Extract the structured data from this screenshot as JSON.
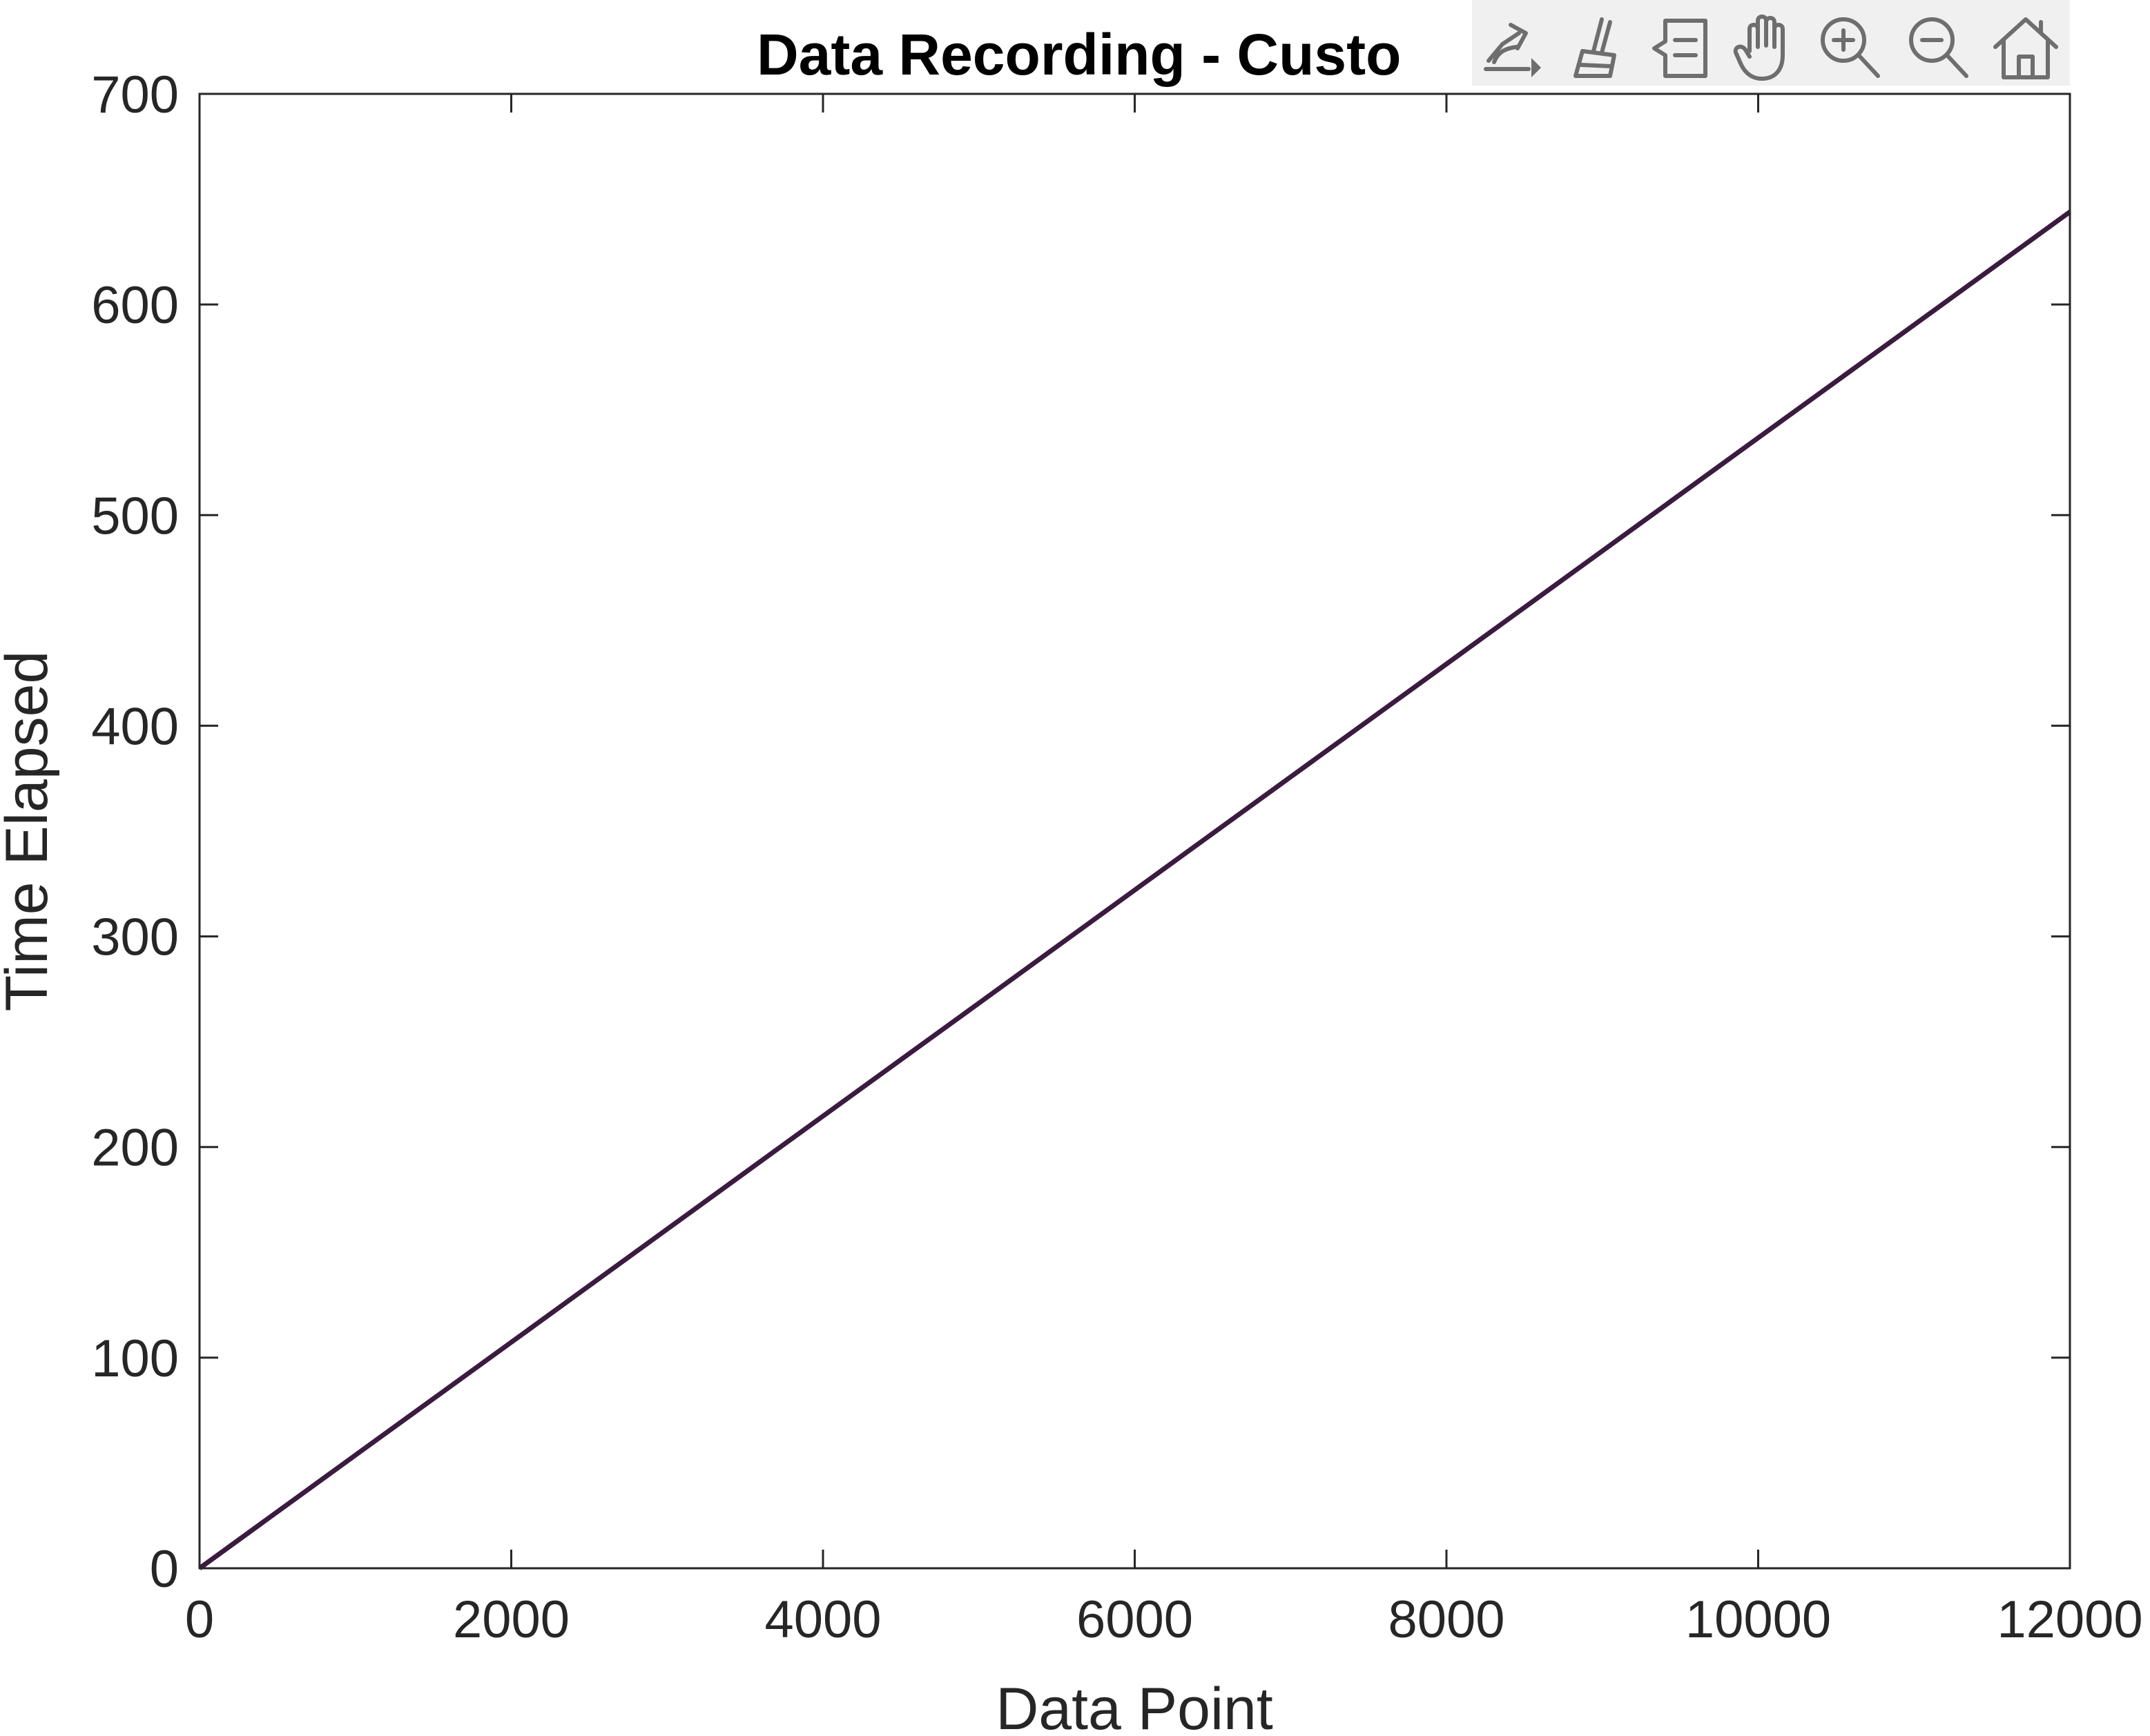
{
  "chart_data": {
    "type": "line",
    "title": "Data Recording - Custo",
    "xlabel": "Data Point",
    "ylabel": "Time Elapsed",
    "xlim": [
      0,
      12000
    ],
    "ylim": [
      0,
      700
    ],
    "xticks": [
      0,
      2000,
      4000,
      6000,
      8000,
      10000,
      12000
    ],
    "yticks": [
      0,
      100,
      200,
      300,
      400,
      500,
      600,
      700
    ],
    "grid": false,
    "series": [
      {
        "color": "#3b1b40",
        "x": [
          0,
          1000,
          2000,
          3000,
          4000,
          5000,
          6000,
          7000,
          8000,
          9000,
          10000,
          11000,
          12000
        ],
        "y": [
          0,
          53.7,
          107.3,
          161,
          214.7,
          268.3,
          322,
          375.7,
          429.3,
          483,
          536.7,
          590.3,
          644
        ]
      }
    ]
  },
  "toolbar": {
    "icons": [
      "export-icon",
      "brush-icon",
      "datatip-icon",
      "pan-icon",
      "zoom-in-icon",
      "zoom-out-icon",
      "home-icon"
    ]
  }
}
